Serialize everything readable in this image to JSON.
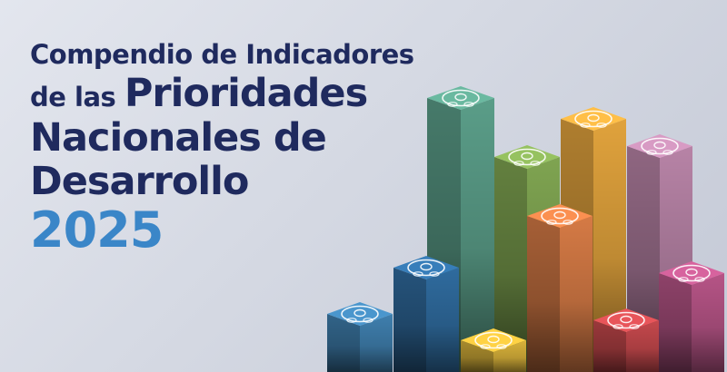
{
  "title": {
    "line1": "Compendio de Indicadores",
    "line2_small": "de las",
    "line2_big": "Prioridades",
    "line3": "Nacionales de",
    "line4": "Desarrollo",
    "year": "2025"
  },
  "colors": {
    "title": "#1f2a5e",
    "year": "#3a86c8",
    "bars": [
      "#3f7fae",
      "#2f6b9e",
      "#5a9d88",
      "#d9b23a",
      "#7fa451",
      "#d57a45",
      "#e0a23c",
      "#c5484c",
      "#b783a6",
      "#b65486"
    ]
  },
  "icons": [
    "water-drop-icon",
    "recycle-icon",
    "health-icon",
    "grain-icon",
    "graph-icon",
    "people-icon",
    "landscape-icon",
    "education-icon",
    "hands-icon",
    "home-icon"
  ]
}
